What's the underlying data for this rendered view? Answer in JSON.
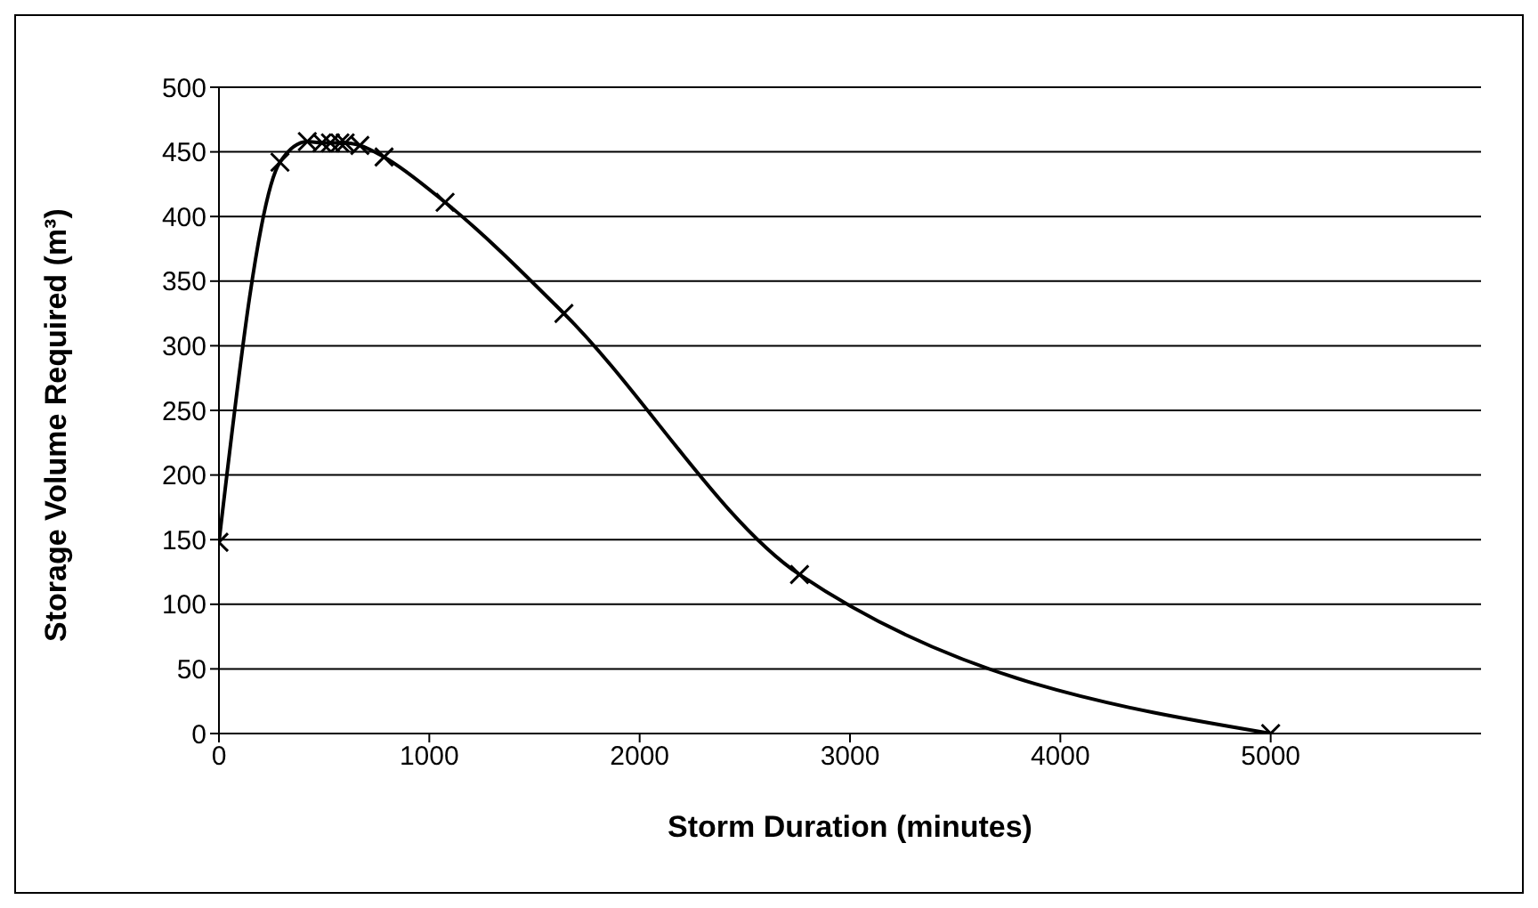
{
  "chart_data": {
    "type": "line",
    "xlabel": "Storm Duration (minutes)",
    "ylabel": "Storage Volume Required (m³)",
    "x": [
      0,
      290,
      420,
      490,
      530,
      575,
      600,
      670,
      785,
      1075,
      1640,
      2760,
      5000
    ],
    "series": [
      {
        "color": "#000000",
        "values": [
          148,
          442,
          458,
          457,
          457,
          457,
          457,
          455,
          446,
          411,
          325,
          123,
          0
        ]
      }
    ],
    "xlim": [
      0,
      6000
    ],
    "xticks": [
      0,
      1000,
      2000,
      3000,
      4000,
      5000
    ],
    "ylim": [
      0,
      500
    ],
    "yticks": [
      0,
      50,
      100,
      150,
      200,
      250,
      300,
      350,
      400,
      450,
      500
    ],
    "grid": "y",
    "marker": "cross",
    "line_style": "solid",
    "legend": false
  }
}
